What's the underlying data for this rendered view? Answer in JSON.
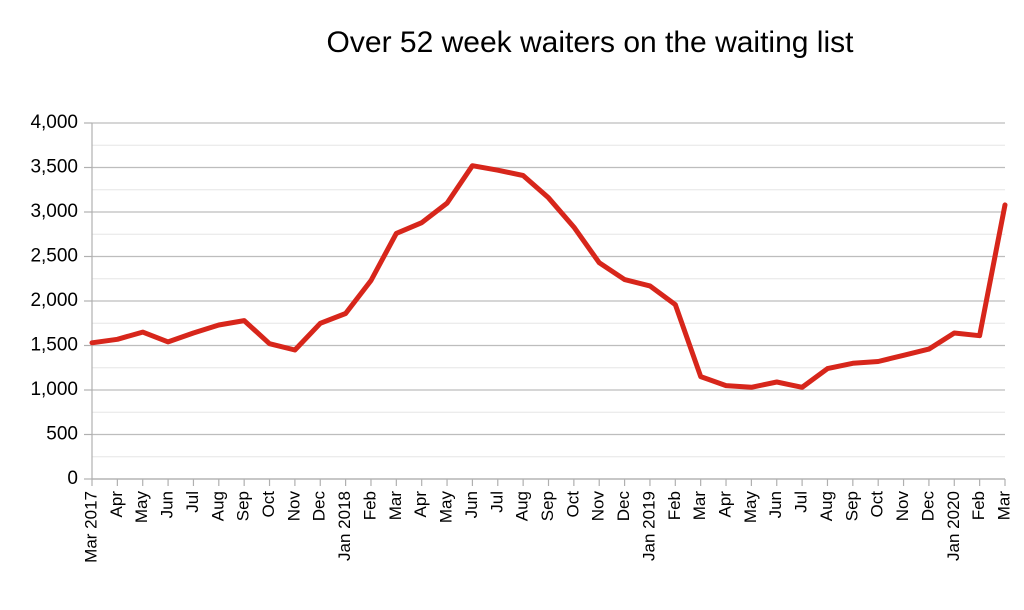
{
  "chart_data": {
    "type": "line",
    "title": "Over 52 week waiters on the waiting list",
    "xlabel": "",
    "ylabel": "",
    "ylim": [
      0,
      4000
    ],
    "yticks": [
      "0",
      "500",
      "1,000",
      "1,500",
      "2,000",
      "2,500",
      "3,000",
      "3,500",
      "4,000"
    ],
    "ytick_values": [
      0,
      500,
      1000,
      1500,
      2000,
      2500,
      3000,
      3500,
      4000
    ],
    "grid": true,
    "line_color": "#d7261b",
    "categories": [
      "Mar 2017",
      "Apr",
      "May",
      "Jun",
      "Jul",
      "Aug",
      "Sep",
      "Oct",
      "Nov",
      "Dec",
      "Jan 2018",
      "Feb",
      "Mar",
      "Apr",
      "May",
      "Jun",
      "Jul",
      "Aug",
      "Sep",
      "Oct",
      "Nov",
      "Dec",
      "Jan 2019",
      "Feb",
      "Mar",
      "Apr",
      "May",
      "Jun",
      "Jul",
      "Aug",
      "Sep",
      "Oct",
      "Nov",
      "Dec",
      "Jan 2020",
      "Feb",
      "Mar"
    ],
    "values": [
      1530,
      1570,
      1650,
      1540,
      1640,
      1730,
      1780,
      1520,
      1450,
      1750,
      1860,
      2230,
      2760,
      2880,
      3100,
      3520,
      3470,
      3410,
      3160,
      2830,
      2430,
      2240,
      2170,
      1960,
      1150,
      1050,
      1030,
      1090,
      1030,
      1240,
      1300,
      1320,
      1390,
      1460,
      1640,
      1610,
      3080
    ]
  }
}
